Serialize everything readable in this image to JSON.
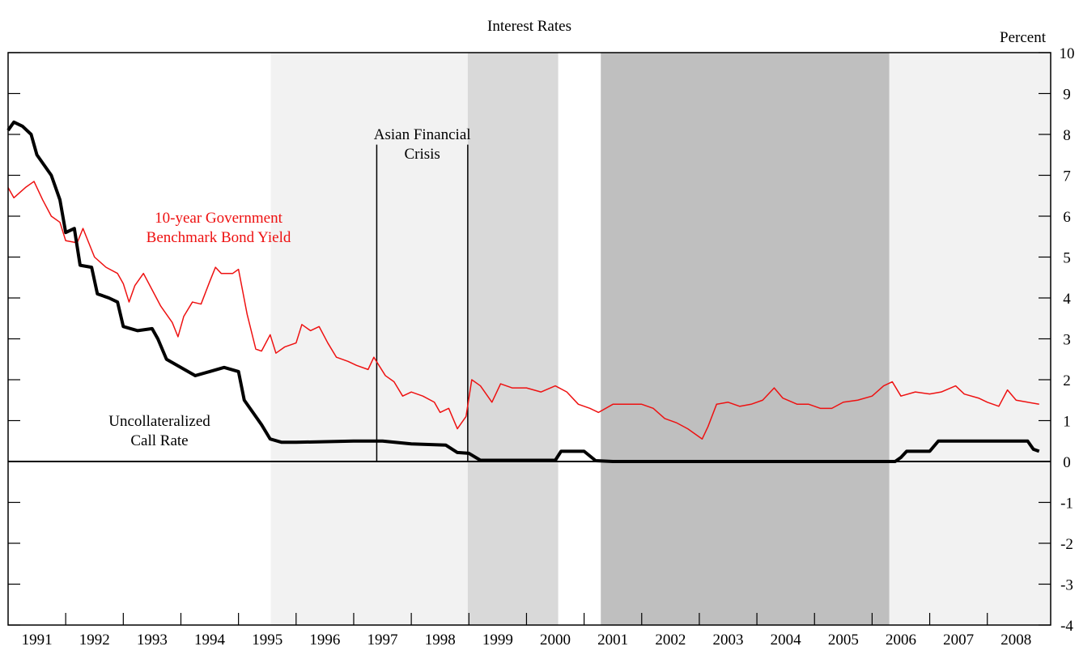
{
  "chart_data": {
    "type": "line",
    "title": "Interest Rates",
    "y_unit_label": "Percent",
    "xlim": [
      1991,
      2009.1
    ],
    "ylim": [
      -4,
      10
    ],
    "yticks": [
      -4,
      -3,
      -2,
      -1,
      0,
      1,
      2,
      3,
      4,
      5,
      6,
      7,
      8,
      9,
      10
    ],
    "xticks": [
      {
        "value": 1991.5,
        "label": "1991"
      },
      {
        "value": 1992.5,
        "label": "1992"
      },
      {
        "value": 1993.5,
        "label": "1993"
      },
      {
        "value": 1994.5,
        "label": "1994"
      },
      {
        "value": 1995.5,
        "label": "1995"
      },
      {
        "value": 1996.5,
        "label": "1996"
      },
      {
        "value": 1997.5,
        "label": "1997"
      },
      {
        "value": 1998.5,
        "label": "1998"
      },
      {
        "value": 1999.5,
        "label": "1999"
      },
      {
        "value": 2000.5,
        "label": "2000"
      },
      {
        "value": 2001.5,
        "label": "2001"
      },
      {
        "value": 2002.5,
        "label": "2002"
      },
      {
        "value": 2003.5,
        "label": "2003"
      },
      {
        "value": 2004.5,
        "label": "2004"
      },
      {
        "value": 2005.5,
        "label": "2005"
      },
      {
        "value": 2006.5,
        "label": "2006"
      },
      {
        "value": 2007.5,
        "label": "2007"
      },
      {
        "value": 2008.5,
        "label": "2008"
      }
    ],
    "minor_xticks": [
      1992,
      1993,
      1994,
      1995,
      1996,
      1997,
      1998,
      1999,
      2000,
      2001,
      2002,
      2003,
      2004,
      2005,
      2006,
      2007,
      2008
    ],
    "zero_line": 0,
    "shaded_regions": [
      {
        "start": 1995.56,
        "end": 1998.98,
        "color": "#f2f2f2"
      },
      {
        "start": 1998.98,
        "end": 2000.55,
        "color": "#d9d9d9"
      },
      {
        "start": 2001.29,
        "end": 2006.3,
        "color": "#bfbfbf"
      },
      {
        "start": 2006.3,
        "end": 2009.1,
        "color": "#f2f2f2"
      }
    ],
    "event_lines": [
      1997.4,
      1998.98
    ],
    "event_line_top": 7.75,
    "event_label": [
      "Asian Financial",
      "Crisis"
    ],
    "series": [
      {
        "color": "#ee1111",
        "width": 1.5,
        "label": [
          "10-year Government",
          "Benchmark Bond Yield"
        ],
        "x": [
          1991.0,
          1991.1,
          1991.3,
          1991.45,
          1991.6,
          1991.75,
          1991.9,
          1992.0,
          1992.2,
          1992.3,
          1992.5,
          1992.7,
          1992.9,
          1993.0,
          1993.1,
          1993.2,
          1993.35,
          1993.5,
          1993.65,
          1993.85,
          1993.95,
          1994.05,
          1994.2,
          1994.35,
          1994.5,
          1994.6,
          1994.7,
          1994.9,
          1995.0,
          1995.15,
          1995.3,
          1995.4,
          1995.55,
          1995.65,
          1995.8,
          1996.0,
          1996.1,
          1996.25,
          1996.4,
          1996.55,
          1996.7,
          1996.9,
          1997.05,
          1997.25,
          1997.35,
          1997.55,
          1997.7,
          1997.85,
          1998.0,
          1998.2,
          1998.4,
          1998.5,
          1998.65,
          1998.8,
          1998.95,
          1999.05,
          1999.2,
          1999.4,
          1999.55,
          1999.75,
          2000.0,
          2000.25,
          2000.5,
          2000.7,
          2000.9,
          2001.1,
          2001.25,
          2001.5,
          2001.75,
          2002.0,
          2002.2,
          2002.4,
          2002.6,
          2002.8,
          2003.05,
          2003.15,
          2003.3,
          2003.5,
          2003.7,
          2003.9,
          2004.1,
          2004.3,
          2004.45,
          2004.7,
          2004.9,
          2005.1,
          2005.3,
          2005.5,
          2005.75,
          2006.0,
          2006.2,
          2006.35,
          2006.5,
          2006.75,
          2007.0,
          2007.2,
          2007.45,
          2007.6,
          2007.85,
          2008.0,
          2008.2,
          2008.35,
          2008.5,
          2008.7,
          2008.9
        ],
        "values": [
          6.7,
          6.45,
          6.7,
          6.85,
          6.4,
          6.0,
          5.85,
          5.4,
          5.35,
          5.7,
          5.0,
          4.75,
          4.6,
          4.35,
          3.9,
          4.3,
          4.6,
          4.2,
          3.8,
          3.4,
          3.05,
          3.55,
          3.9,
          3.85,
          4.4,
          4.75,
          4.6,
          4.6,
          4.7,
          3.6,
          2.75,
          2.7,
          3.1,
          2.65,
          2.8,
          2.9,
          3.35,
          3.2,
          3.3,
          2.9,
          2.55,
          2.45,
          2.35,
          2.25,
          2.55,
          2.1,
          1.95,
          1.6,
          1.7,
          1.6,
          1.45,
          1.2,
          1.3,
          0.8,
          1.1,
          2.0,
          1.85,
          1.45,
          1.9,
          1.8,
          1.8,
          1.7,
          1.85,
          1.7,
          1.4,
          1.3,
          1.2,
          1.4,
          1.4,
          1.4,
          1.3,
          1.05,
          0.95,
          0.8,
          0.55,
          0.85,
          1.4,
          1.45,
          1.35,
          1.4,
          1.5,
          1.8,
          1.55,
          1.4,
          1.4,
          1.3,
          1.3,
          1.45,
          1.5,
          1.6,
          1.85,
          1.95,
          1.6,
          1.7,
          1.65,
          1.7,
          1.85,
          1.65,
          1.55,
          1.45,
          1.35,
          1.75,
          1.5,
          1.45,
          1.4
        ]
      },
      {
        "color": "#000000",
        "width": 4,
        "label": [
          "Uncollateralized",
          "Call Rate"
        ],
        "x": [
          1991.0,
          1991.1,
          1991.25,
          1991.4,
          1991.5,
          1991.75,
          1991.9,
          1992.0,
          1992.15,
          1992.25,
          1992.45,
          1992.55,
          1992.75,
          1992.9,
          1993.0,
          1993.25,
          1993.5,
          1993.6,
          1993.75,
          1994.0,
          1994.25,
          1994.5,
          1994.75,
          1995.0,
          1995.1,
          1995.25,
          1995.4,
          1995.55,
          1995.75,
          1996.0,
          1997.0,
          1997.5,
          1998.0,
          1998.6,
          1998.8,
          1999.0,
          1999.2,
          2000.5,
          2000.6,
          2001.0,
          2001.2,
          2001.5,
          2006.4,
          2006.5,
          2006.6,
          2007.0,
          2007.15,
          2008.7,
          2008.8,
          2008.9
        ],
        "values": [
          8.1,
          8.3,
          8.2,
          8.0,
          7.5,
          7.0,
          6.4,
          5.6,
          5.7,
          4.8,
          4.75,
          4.1,
          4.0,
          3.9,
          3.3,
          3.2,
          3.25,
          3.0,
          2.5,
          2.3,
          2.1,
          2.2,
          2.3,
          2.2,
          1.5,
          1.2,
          0.9,
          0.55,
          0.47,
          0.47,
          0.5,
          0.5,
          0.43,
          0.4,
          0.22,
          0.2,
          0.03,
          0.03,
          0.25,
          0.25,
          0.02,
          0.0,
          0.0,
          0.1,
          0.25,
          0.25,
          0.5,
          0.5,
          0.3,
          0.25
        ]
      }
    ]
  }
}
